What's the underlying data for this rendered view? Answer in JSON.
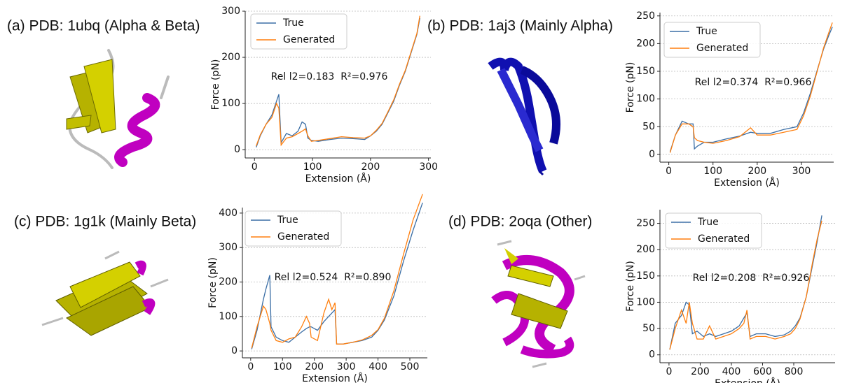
{
  "chart_data": [
    {
      "type": "line",
      "title": "(a) PDB: 1ubq (Alpha & Beta)",
      "annotation": "Rel l2=0.183  R²=0.976",
      "x_label": "Extension (Å)",
      "y_label": "Force (pN)",
      "x": [
        3,
        10,
        20,
        30,
        38,
        42,
        46,
        55,
        65,
        75,
        82,
        88,
        92,
        98,
        110,
        130,
        150,
        170,
        190,
        200,
        210,
        220,
        230,
        240,
        250,
        260,
        270,
        280,
        285
      ],
      "series": [
        {
          "name": "True",
          "color": "#3b6ea5",
          "values": [
            5,
            30,
            55,
            75,
            105,
            120,
            15,
            35,
            30,
            40,
            60,
            55,
            25,
            20,
            18,
            22,
            25,
            24,
            22,
            30,
            40,
            55,
            80,
            105,
            140,
            170,
            210,
            250,
            285
          ]
        },
        {
          "name": "Generated",
          "color": "#ff7f0e",
          "values": [
            8,
            32,
            55,
            70,
            100,
            90,
            10,
            25,
            28,
            35,
            40,
            45,
            30,
            18,
            20,
            24,
            28,
            26,
            25,
            30,
            42,
            57,
            82,
            108,
            142,
            172,
            212,
            252,
            290
          ]
        }
      ],
      "xlim": [
        -16,
        304
      ],
      "ylim": [
        -18,
        300
      ],
      "xticks": [
        0,
        100,
        200,
        300
      ],
      "yticks": [
        0,
        100,
        200,
        300
      ],
      "grid": true,
      "legend": "upper-left"
    },
    {
      "type": "line",
      "title": "(b) PDB: 1aj3 (Mainly Alpha)",
      "annotation": "Rel l2=0.374  R²=0.966",
      "x_label": "Extension (Å)",
      "y_label": "Force (pN)",
      "x": [
        3,
        15,
        30,
        45,
        55,
        58,
        65,
        80,
        100,
        130,
        160,
        185,
        200,
        230,
        260,
        290,
        305,
        320,
        335,
        350,
        362,
        370
      ],
      "series": [
        {
          "name": "True",
          "color": "#3b6ea5",
          "values": [
            5,
            35,
            60,
            55,
            55,
            10,
            15,
            22,
            22,
            28,
            33,
            40,
            38,
            38,
            45,
            50,
            75,
            110,
            150,
            190,
            215,
            230
          ]
        },
        {
          "name": "Generated",
          "color": "#ff7f0e",
          "values": [
            3,
            35,
            55,
            55,
            50,
            30,
            25,
            22,
            20,
            25,
            32,
            48,
            35,
            35,
            40,
            45,
            70,
            105,
            148,
            192,
            220,
            238
          ]
        }
      ],
      "xlim": [
        -20,
        373
      ],
      "ylim": [
        -14,
        256
      ],
      "xticks": [
        0,
        100,
        200,
        300
      ],
      "yticks": [
        0,
        50,
        100,
        150,
        200,
        250
      ],
      "grid": true,
      "legend": "upper-left"
    },
    {
      "type": "line",
      "title": "(c) PDB: 1g1k (Mainly Beta)",
      "annotation": "Rel l2=0.524  R²=0.890",
      "x_label": "Extension (Å)",
      "y_label": "Force (pN)",
      "x": [
        3,
        20,
        40,
        48,
        60,
        64,
        80,
        100,
        120,
        140,
        160,
        175,
        185,
        190,
        210,
        230,
        245,
        255,
        265,
        270,
        290,
        320,
        350,
        380,
        400,
        420,
        450,
        480,
        510,
        540
      ],
      "series": [
        {
          "name": "True",
          "color": "#3b6ea5",
          "values": [
            5,
            60,
            150,
            180,
            220,
            70,
            40,
            30,
            25,
            40,
            55,
            65,
            70,
            70,
            60,
            85,
            100,
            110,
            120,
            20,
            20,
            25,
            30,
            40,
            60,
            90,
            160,
            260,
            350,
            430
          ]
        },
        {
          "name": "Generated",
          "color": "#ff7f0e",
          "values": [
            8,
            70,
            130,
            120,
            80,
            60,
            30,
            25,
            35,
            40,
            70,
            100,
            80,
            40,
            30,
            110,
            150,
            120,
            140,
            20,
            20,
            25,
            32,
            45,
            62,
            95,
            175,
            280,
            380,
            455
          ]
        }
      ],
      "xlim": [
        -26,
        555
      ],
      "ylim": [
        -20,
        416
      ],
      "xticks": [
        0,
        100,
        200,
        300,
        400,
        500
      ],
      "yticks": [
        0,
        100,
        200,
        300,
        400
      ],
      "grid": true,
      "legend": "upper-left"
    },
    {
      "type": "line",
      "title": "(d) PDB: 2oqa (Other)",
      "annotation": "Rel l2=0.208  R²=0.926",
      "x_label": "Extension (Å)",
      "y_label": "Force (pN)",
      "x": [
        5,
        40,
        80,
        110,
        130,
        150,
        180,
        220,
        260,
        300,
        350,
        400,
        450,
        480,
        500,
        520,
        560,
        620,
        680,
        740,
        780,
        810,
        840,
        880,
        920,
        950,
        980
      ],
      "series": [
        {
          "name": "True",
          "color": "#3b6ea5",
          "values": [
            10,
            60,
            75,
            100,
            95,
            40,
            45,
            35,
            40,
            35,
            40,
            45,
            55,
            70,
            80,
            35,
            40,
            40,
            35,
            38,
            45,
            55,
            70,
            110,
            170,
            215,
            265
          ]
        },
        {
          "name": "Generated",
          "color": "#ff7f0e",
          "values": [
            10,
            50,
            85,
            60,
            100,
            60,
            30,
            30,
            55,
            30,
            35,
            40,
            50,
            60,
            85,
            30,
            35,
            35,
            30,
            35,
            40,
            50,
            68,
            110,
            175,
            220,
            255
          ]
        }
      ],
      "xlim": [
        -58,
        1065
      ],
      "ylim": [
        -15,
        276
      ],
      "xticks": [
        0,
        200,
        400,
        600,
        800
      ],
      "yticks": [
        0,
        50,
        100,
        150,
        200,
        250
      ],
      "grid": true,
      "legend": "upper-left"
    }
  ]
}
